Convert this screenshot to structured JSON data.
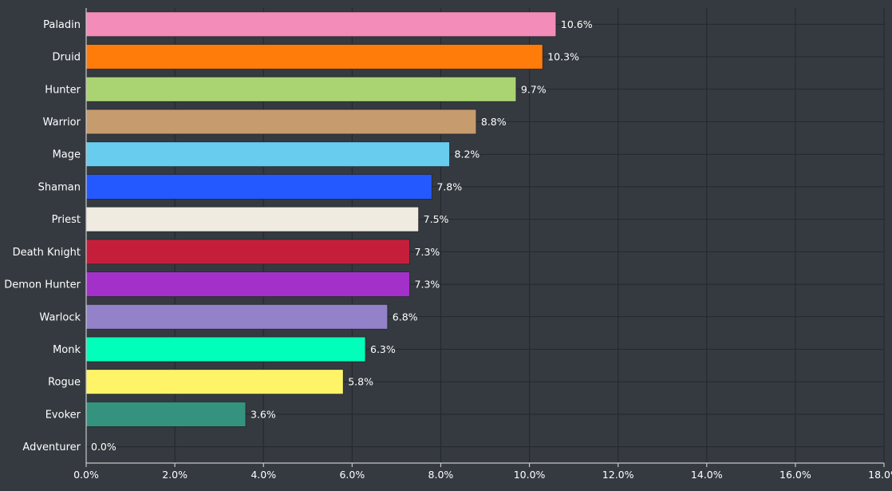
{
  "chart_data": {
    "type": "bar",
    "orientation": "horizontal",
    "title": "",
    "xlabel": "",
    "ylabel": "",
    "xlim": [
      0,
      18
    ],
    "grid": true,
    "categories": [
      "Paladin",
      "Druid",
      "Hunter",
      "Warrior",
      "Mage",
      "Shaman",
      "Priest",
      "Death Knight",
      "Demon Hunter",
      "Warlock",
      "Monk",
      "Rogue",
      "Evoker",
      "Adventurer"
    ],
    "values": [
      10.6,
      10.3,
      9.7,
      8.8,
      8.2,
      7.8,
      7.5,
      7.3,
      7.3,
      6.8,
      6.3,
      5.8,
      3.6,
      0.0
    ],
    "value_labels": [
      "10.6%",
      "10.3%",
      "9.7%",
      "8.8%",
      "8.2%",
      "7.8%",
      "7.5%",
      "7.3%",
      "7.3%",
      "6.8%",
      "6.3%",
      "5.8%",
      "3.6%",
      "0.0%"
    ],
    "colors": [
      "#f48cba",
      "#ff7c0a",
      "#aad372",
      "#c69b6d",
      "#68ccef",
      "#2459ff",
      "#f0ebe0",
      "#c41e3b",
      "#a330c9",
      "#9382c9",
      "#00ffba",
      "#fff468",
      "#33937f",
      "#aaaaaa"
    ],
    "x_ticks": [
      0,
      2,
      4,
      6,
      8,
      10,
      12,
      14,
      16,
      18
    ],
    "x_tick_labels": [
      "0.0%",
      "2.0%",
      "4.0%",
      "6.0%",
      "8.0%",
      "10.0%",
      "12.0%",
      "14.0%",
      "16.0%",
      "18.0%"
    ]
  }
}
